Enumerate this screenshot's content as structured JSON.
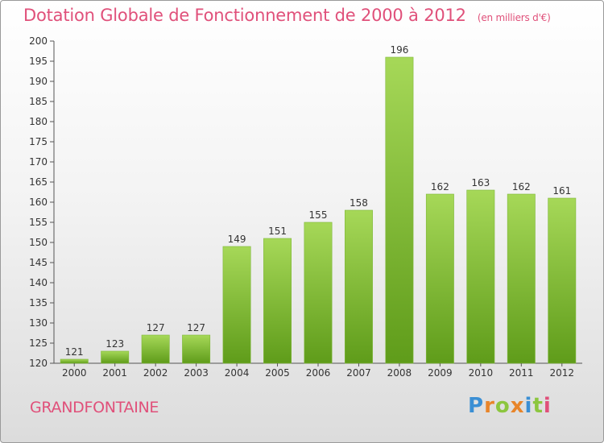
{
  "header": {
    "title": "Dotation Globale de Fonctionnement de 2000 à 2012",
    "unit": "(en milliers d'€)"
  },
  "footer": {
    "city": "GRANDFONTAINE",
    "logo_text": "Proxiti"
  },
  "colors": {
    "bar_light": "#a6d858",
    "bar_dark": "#5f9c1a",
    "title_pink": "#e0507a",
    "logo_letters": [
      "#3b8fd4",
      "#e8852a",
      "#8cc63f",
      "#e8852a",
      "#3b8fd4",
      "#8cc63f",
      "#e0507a"
    ]
  },
  "chart_data": {
    "type": "bar",
    "categories": [
      "2000",
      "2001",
      "2002",
      "2003",
      "2004",
      "2005",
      "2006",
      "2007",
      "2008",
      "2009",
      "2010",
      "2011",
      "2012"
    ],
    "values": [
      121,
      123,
      127,
      127,
      149,
      151,
      155,
      158,
      196,
      162,
      163,
      162,
      161
    ],
    "ylim": [
      120,
      200
    ],
    "ytick_step": 5,
    "grid": false
  }
}
